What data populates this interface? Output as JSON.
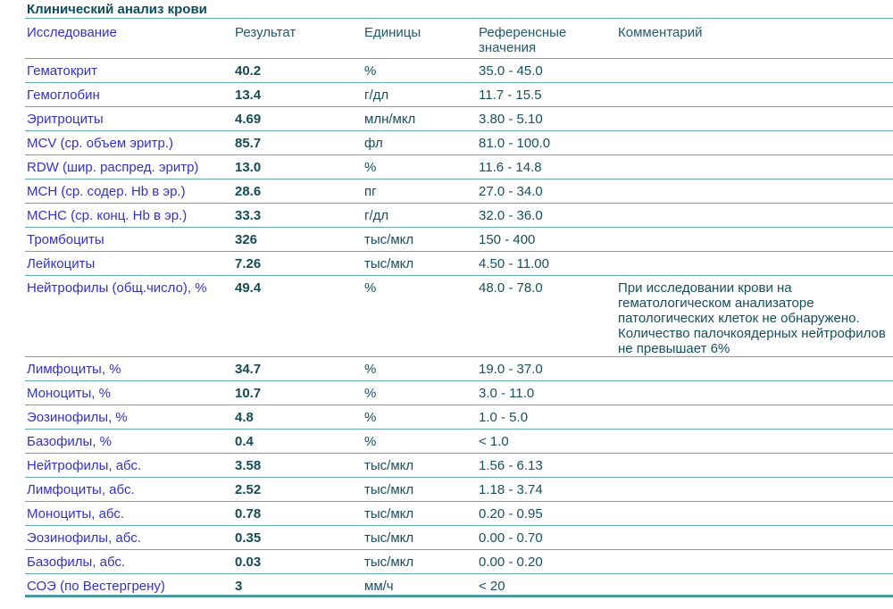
{
  "report": {
    "title": "Клинический анализ крови"
  },
  "colors": {
    "rule_teal": "#64a9ae",
    "bottom_rule": "#4c99a0",
    "title_text": "#0f4c5c",
    "header_text": "#215a6b",
    "body_text": "#174f5e",
    "result_text": "#154c57",
    "test_name_blue": "#3431cb"
  },
  "table": {
    "columns": [
      {
        "key": "name",
        "label": "Исследование"
      },
      {
        "key": "result",
        "label": "Результат"
      },
      {
        "key": "units",
        "label": "Единицы"
      },
      {
        "key": "ref",
        "label": "Референсные значения"
      },
      {
        "key": "comment",
        "label": "Комментарий"
      }
    ],
    "rows": [
      {
        "name": "Гематокрит",
        "result": "40.2",
        "units": "%",
        "ref": "35.0 - 45.0",
        "comment": ""
      },
      {
        "name": "Гемоглобин",
        "result": "13.4",
        "units": "г/дл",
        "ref": "11.7 - 15.5",
        "comment": ""
      },
      {
        "name": "Эритроциты",
        "result": "4.69",
        "units": "млн/мкл",
        "ref": "3.80 - 5.10",
        "comment": ""
      },
      {
        "name": "MCV (ср. объем эритр.)",
        "result": "85.7",
        "units": "фл",
        "ref": "81.0 - 100.0",
        "comment": ""
      },
      {
        "name": "RDW (шир. распред. эритр)",
        "result": "13.0",
        "units": "%",
        "ref": "11.6 - 14.8",
        "comment": ""
      },
      {
        "name": "MCH (ср. содер. Hb в эр.)",
        "result": "28.6",
        "units": "пг",
        "ref": "27.0 - 34.0",
        "comment": ""
      },
      {
        "name": "MCHC (ср. конц. Hb в эр.)",
        "result": "33.3",
        "units": "г/дл",
        "ref": "32.0 - 36.0",
        "comment": ""
      },
      {
        "name": "Тромбоциты",
        "result": "326",
        "units": "тыс/мкл",
        "ref": "150 - 400",
        "comment": ""
      },
      {
        "name": "Лейкоциты",
        "result": "7.26",
        "units": "тыс/мкл",
        "ref": "4.50 - 11.00",
        "comment": ""
      },
      {
        "name": "Нейтрофилы (общ.число), %",
        "result": "49.4",
        "units": "%",
        "ref": "48.0 - 78.0",
        "comment": "При исследовании крови на гематологическом анализаторе патологических клеток не обнаружено. Количество палочкоядерных нейтрофилов не превышает 6%"
      },
      {
        "name": "Лимфоциты, %",
        "result": "34.7",
        "units": "%",
        "ref": "19.0 - 37.0",
        "comment": ""
      },
      {
        "name": "Моноциты, %",
        "result": "10.7",
        "units": "%",
        "ref": "3.0 - 11.0",
        "comment": ""
      },
      {
        "name": "Эозинофилы, %",
        "result": "4.8",
        "units": "%",
        "ref": "1.0 - 5.0",
        "comment": ""
      },
      {
        "name": "Базофилы, %",
        "result": "0.4",
        "units": "%",
        "ref": "< 1.0",
        "comment": ""
      },
      {
        "name": "Нейтрофилы, абс.",
        "result": "3.58",
        "units": "тыс/мкл",
        "ref": "1.56 - 6.13",
        "comment": ""
      },
      {
        "name": "Лимфоциты, абс.",
        "result": "2.52",
        "units": "тыс/мкл",
        "ref": "1.18 - 3.74",
        "comment": ""
      },
      {
        "name": "Моноциты, абс.",
        "result": "0.78",
        "units": "тыс/мкл",
        "ref": "0.20 - 0.95",
        "comment": ""
      },
      {
        "name": "Эозинофилы, абс.",
        "result": "0.35",
        "units": "тыс/мкл",
        "ref": "0.00 - 0.70",
        "comment": ""
      },
      {
        "name": "Базофилы, абс.",
        "result": "0.03",
        "units": "тыс/мкл",
        "ref": "0.00 - 0.20",
        "comment": ""
      },
      {
        "name": "СОЭ (по Вестергрену)",
        "result": "3",
        "units": "мм/ч",
        "ref": "< 20",
        "comment": ""
      }
    ]
  }
}
